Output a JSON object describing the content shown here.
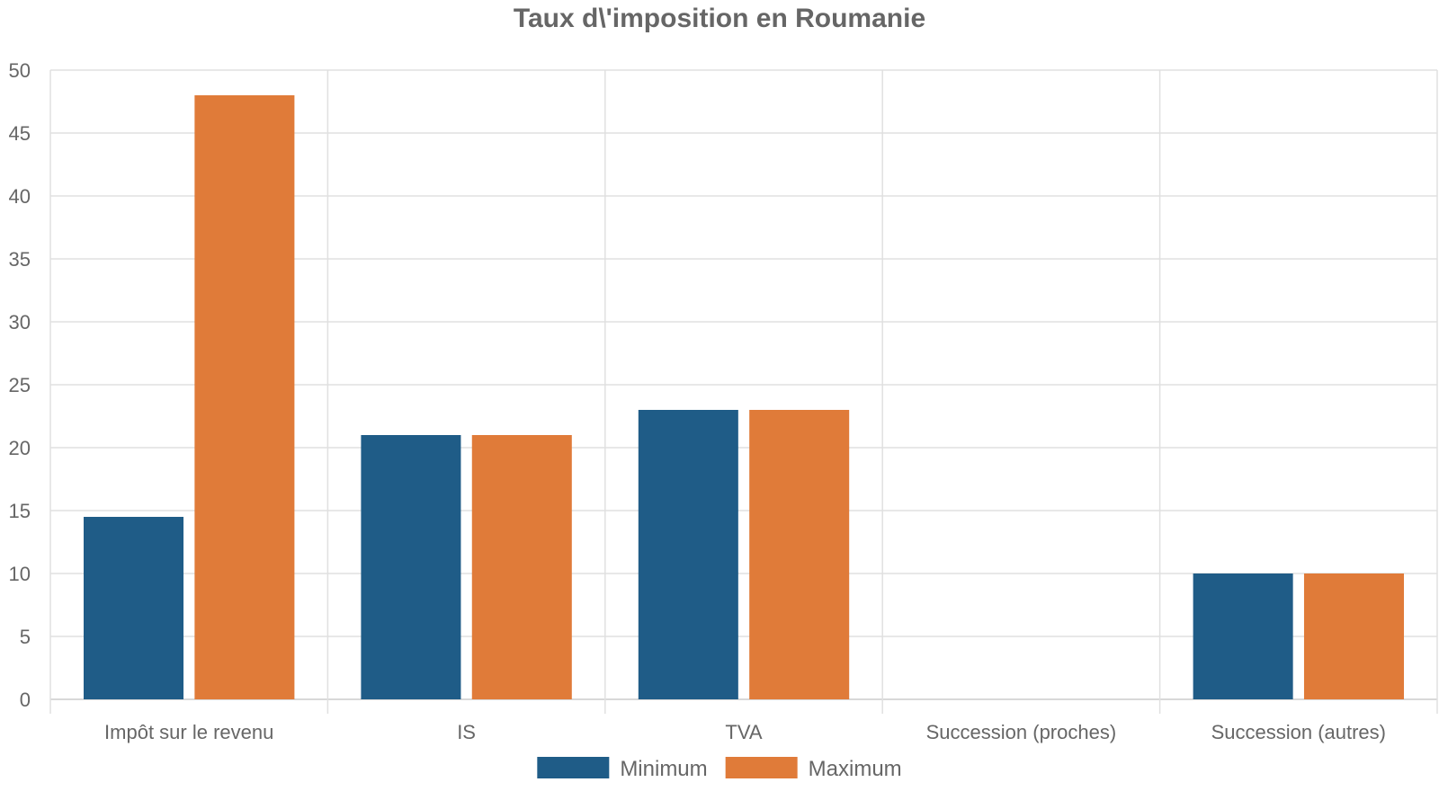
{
  "chart_data": {
    "type": "bar",
    "title": "Taux d\\'imposition en Roumanie",
    "xlabel": "",
    "ylabel": "",
    "categories": [
      "Impôt sur le revenu",
      "IS",
      "TVA",
      "Succession (proches)",
      "Succession (autres)"
    ],
    "series": [
      {
        "name": "Minimum",
        "values": [
          14.5,
          21,
          23,
          0,
          10
        ],
        "color": "#1f5c87"
      },
      {
        "name": "Maximum",
        "values": [
          48,
          21,
          23,
          0,
          10
        ],
        "color": "#e07b39"
      }
    ],
    "ylim": [
      0,
      50
    ],
    "yticks": [
      0,
      5,
      10,
      15,
      20,
      25,
      30,
      35,
      40,
      45,
      50
    ],
    "grid": true,
    "legend_position": "bottom-center"
  }
}
